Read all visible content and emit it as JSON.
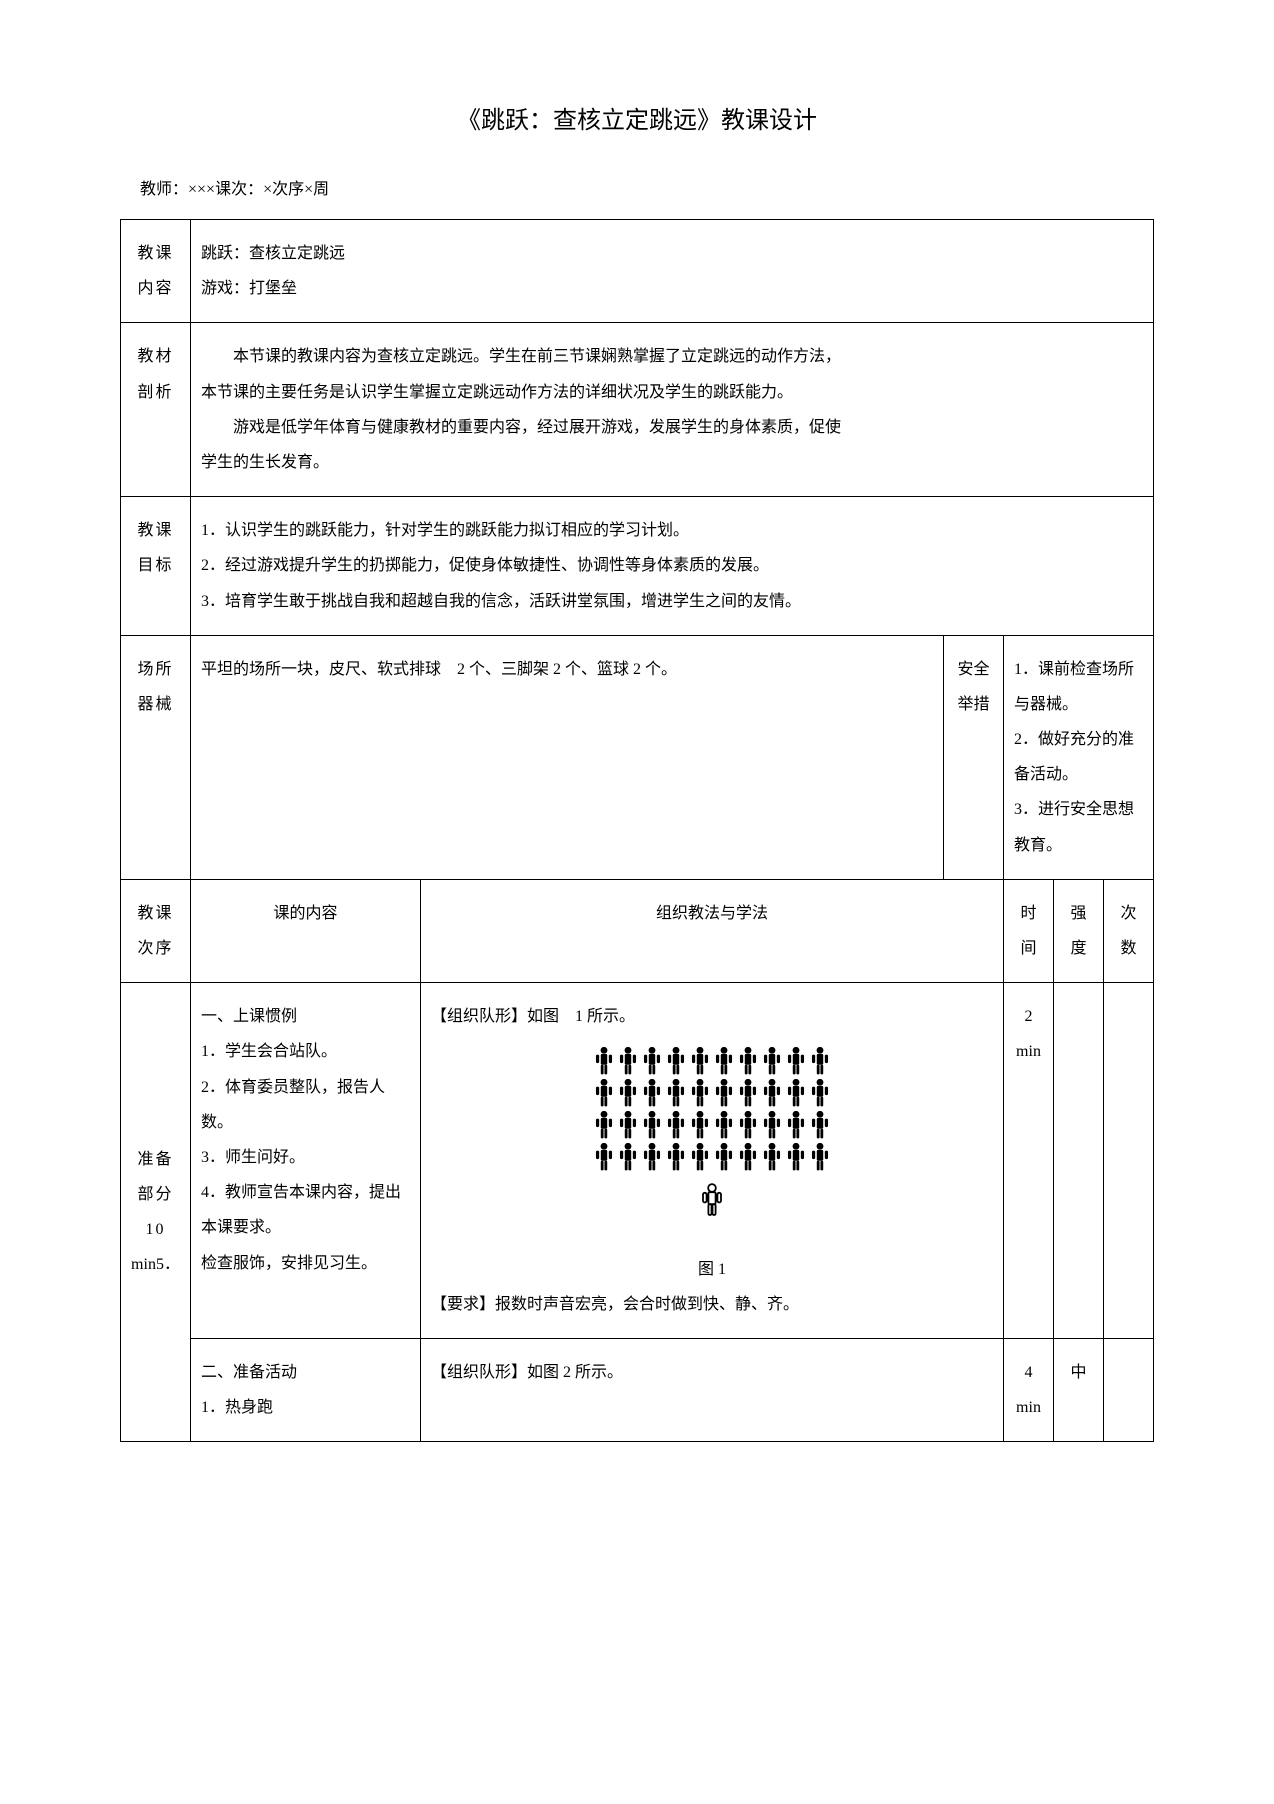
{
  "title": "《跳跃：查核立定跳远》教课设计",
  "teacher_line": "教师：×××课次：×次序×周",
  "rows": {
    "content_label": "教课内容",
    "content_line1": "跳跃：查核立定跳远",
    "content_line2": "游戏：打堡垒",
    "material_label": "教材剖析",
    "material_p1": "本节课的教课内容为查核立定跳远。学生在前三节课娴熟掌握了立定跳远的动作方法，",
    "material_p2": "本节课的主要任务是认识学生掌握立定跳远动作方法的详细状况及学生的跳跃能力。",
    "material_p3": "游戏是低学年体育与健康教材的重要内容，经过展开游戏，发展学生的身体素质，促使",
    "material_p4": "学生的生长发育。",
    "goal_label": "教课目标",
    "goal_1": "1．认识学生的跳跃能力，针对学生的跳跃能力拟订相应的学习计划。",
    "goal_2": "2．经过游戏提升学生的扔掷能力，促使身体敏捷性、协调性等身体素质的发展。",
    "goal_3": "3．培育学生敢于挑战自我和超越自我的信念，活跃讲堂氛围，增进学生之间的友情。",
    "venue_label": "场所器械",
    "venue_text": "平坦的场所一块，皮尺、软式排球　2 个、三脚架 2 个、篮球 2 个。",
    "safety_label": "安全举措",
    "safety_1": "1．课前检查场所与器械。",
    "safety_2": "2．做好充分的准备活动。",
    "safety_3": "3．进行安全思想教育。",
    "seq_label": "教课次序",
    "content_header": "课的内容",
    "method_header": "组织教法与学法",
    "time_header": "时间",
    "intensity_header": "强度",
    "count_header": "次数",
    "prep_label_l1": "准备",
    "prep_label_l2": "部分",
    "prep_label_l3": "10",
    "prep_label_l4": "min5．",
    "prep_content_1": "一、上课惯例",
    "prep_content_2": "1．学生会合站队。",
    "prep_content_3": "2．体育委员整队，报告人数。",
    "prep_content_4": "3．师生问好。",
    "prep_content_5": "4．教师宣告本课内容，提出本课要求。",
    "prep_content_6": "检查服饰，安排见习生。",
    "method_1_title": "【组织队形】如图　1 所示。",
    "fig1_caption": "图 1",
    "method_1_req": "【要求】报数时声音宏亮，会合时做到快、静、齐。",
    "prep_time_1": "2 min",
    "prep2_content_1": "二、准备活动",
    "prep2_content_2": "1．热身跑",
    "method_2_title": "【组织队形】如图 2 所示。",
    "prep_time_2": "4 min",
    "prep_intensity_2": "中"
  },
  "formation": {
    "rows": 4,
    "cols": 10,
    "fill_color": "#000000",
    "teacher_fill": "none",
    "teacher_stroke": "#000000"
  }
}
